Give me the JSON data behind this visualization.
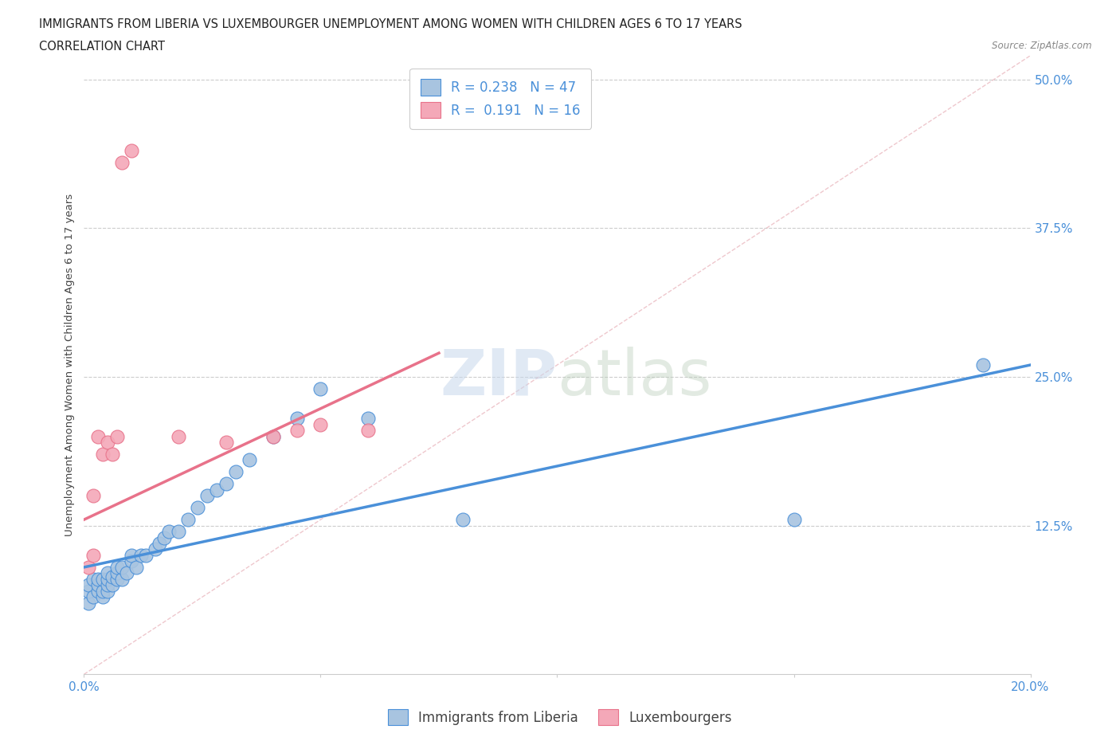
{
  "title_line1": "IMMIGRANTS FROM LIBERIA VS LUXEMBOURGER UNEMPLOYMENT AMONG WOMEN WITH CHILDREN AGES 6 TO 17 YEARS",
  "title_line2": "CORRELATION CHART",
  "source": "Source: ZipAtlas.com",
  "ylabel": "Unemployment Among Women with Children Ages 6 to 17 years",
  "xlim": [
    0.0,
    0.2
  ],
  "ylim": [
    0.0,
    0.52
  ],
  "R_liberia": 0.238,
  "N_liberia": 47,
  "R_luxembourg": 0.191,
  "N_luxembourg": 16,
  "color_liberia": "#a8c4e0",
  "color_luxembourg": "#f4a8b8",
  "trendline_liberia_color": "#4a90d9",
  "trendline_luxembourg_color": "#e8728a",
  "diagonal_color": "#d8b8b8",
  "background_color": "#ffffff",
  "grid_color": "#cccccc",
  "text_color": "#4a90d9",
  "scatter_liberia_x": [
    0.001,
    0.001,
    0.001,
    0.002,
    0.002,
    0.003,
    0.003,
    0.003,
    0.004,
    0.004,
    0.004,
    0.005,
    0.005,
    0.005,
    0.005,
    0.006,
    0.006,
    0.007,
    0.007,
    0.007,
    0.008,
    0.008,
    0.009,
    0.01,
    0.01,
    0.011,
    0.012,
    0.013,
    0.015,
    0.016,
    0.017,
    0.018,
    0.02,
    0.022,
    0.024,
    0.026,
    0.028,
    0.03,
    0.032,
    0.035,
    0.04,
    0.045,
    0.05,
    0.06,
    0.08,
    0.15,
    0.19
  ],
  "scatter_liberia_y": [
    0.06,
    0.07,
    0.075,
    0.065,
    0.08,
    0.07,
    0.075,
    0.08,
    0.065,
    0.07,
    0.08,
    0.07,
    0.075,
    0.08,
    0.085,
    0.075,
    0.082,
    0.08,
    0.085,
    0.09,
    0.08,
    0.09,
    0.085,
    0.095,
    0.1,
    0.09,
    0.1,
    0.1,
    0.105,
    0.11,
    0.115,
    0.12,
    0.12,
    0.13,
    0.14,
    0.15,
    0.155,
    0.16,
    0.17,
    0.18,
    0.2,
    0.215,
    0.24,
    0.215,
    0.13,
    0.13,
    0.26
  ],
  "scatter_luxembourg_x": [
    0.001,
    0.002,
    0.002,
    0.003,
    0.004,
    0.005,
    0.006,
    0.007,
    0.008,
    0.01,
    0.02,
    0.03,
    0.04,
    0.045,
    0.05,
    0.06
  ],
  "scatter_luxembourg_y": [
    0.09,
    0.1,
    0.15,
    0.2,
    0.185,
    0.195,
    0.185,
    0.2,
    0.43,
    0.44,
    0.2,
    0.195,
    0.2,
    0.205,
    0.21,
    0.205
  ],
  "trendline_liberia_x0": 0.0,
  "trendline_liberia_y0": 0.09,
  "trendline_liberia_x1": 0.2,
  "trendline_liberia_y1": 0.26,
  "trendline_luxembourg_x0": 0.0,
  "trendline_luxembourg_y0": 0.13,
  "trendline_luxembourg_x1": 0.075,
  "trendline_luxembourg_y1": 0.27
}
